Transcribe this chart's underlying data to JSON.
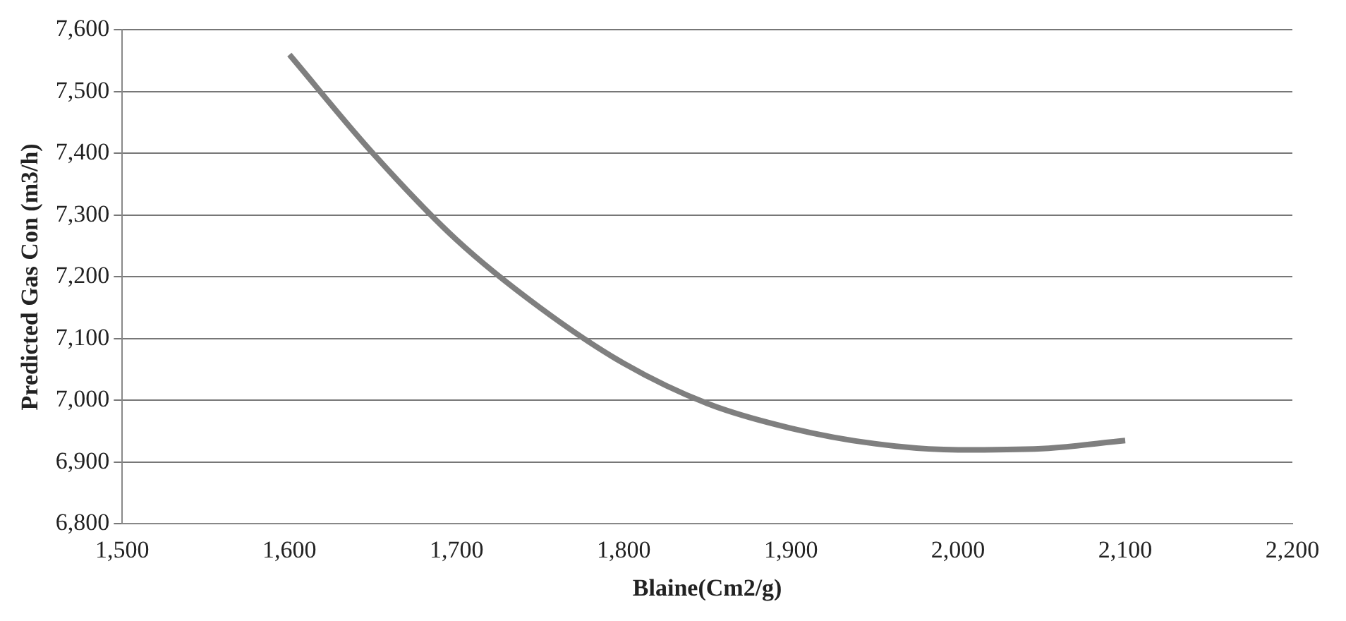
{
  "chart_data": {
    "type": "line",
    "xlabel": "Blaine(Cm2/g)",
    "ylabel": "Predicted Gas Con (m3/h)",
    "x": [
      1600,
      1650,
      1700,
      1750,
      1800,
      1850,
      1900,
      1950,
      2000,
      2050,
      2100
    ],
    "series": [
      {
        "color": "#7f7f7f",
        "values": [
          7560,
          7400,
          7260,
          7150,
          7060,
          6995,
          6955,
          6930,
          6920,
          6922,
          6935
        ]
      }
    ],
    "xlim": [
      1500,
      2200
    ],
    "xticks": [
      {
        "value": 1500,
        "label": "1,500"
      },
      {
        "value": 1600,
        "label": "1,600"
      },
      {
        "value": 1700,
        "label": "1,700"
      },
      {
        "value": 1800,
        "label": "1,800"
      },
      {
        "value": 1900,
        "label": "1,900"
      },
      {
        "value": 2000,
        "label": "2,000"
      },
      {
        "value": 2100,
        "label": "2,100"
      },
      {
        "value": 2200,
        "label": "2,200"
      }
    ],
    "ylim": [
      6800,
      7600
    ],
    "yticks": [
      {
        "value": 6800,
        "label": "6,800"
      },
      {
        "value": 6900,
        "label": "6,900"
      },
      {
        "value": 7000,
        "label": "7,000"
      },
      {
        "value": 7100,
        "label": "7,100"
      },
      {
        "value": 7200,
        "label": "7,200"
      },
      {
        "value": 7300,
        "label": "7,300"
      },
      {
        "value": 7400,
        "label": "7,400"
      },
      {
        "value": 7500,
        "label": "7,500"
      },
      {
        "value": 7600,
        "label": "7,600"
      }
    ],
    "grid": "y",
    "legend": false,
    "marker": "none",
    "line_style": "solid"
  }
}
